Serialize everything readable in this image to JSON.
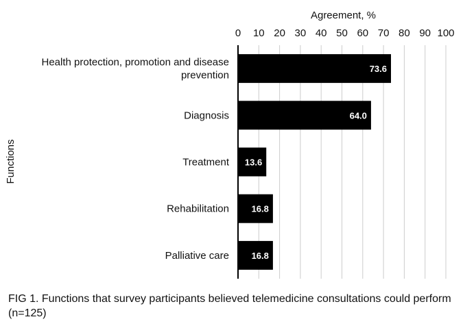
{
  "chart_data": {
    "type": "bar",
    "orientation": "horizontal",
    "xlabel": "Agreement, %",
    "ylabel": "Functions",
    "xlim": [
      0,
      100
    ],
    "xticks": [
      "0",
      "10",
      "20",
      "30",
      "40",
      "50",
      "60",
      "70",
      "80",
      "90",
      "100"
    ],
    "grid": true,
    "categories": [
      [
        "Health protection, promotion and disease",
        "prevention"
      ],
      [
        "Diagnosis"
      ],
      [
        "Treatment"
      ],
      [
        "Rehabilitation"
      ],
      [
        "Palliative care"
      ]
    ],
    "values": [
      73.6,
      64.0,
      13.6,
      16.8,
      16.8
    ],
    "value_labels": [
      "73.6",
      "64.0",
      "13.6",
      "16.8",
      "16.8"
    ],
    "bar_color": "#000000",
    "grid_color": "#cccccc"
  },
  "caption": "FIG 1.  Functions that survey participants believed telemedicine consultations could perform (n=125)"
}
